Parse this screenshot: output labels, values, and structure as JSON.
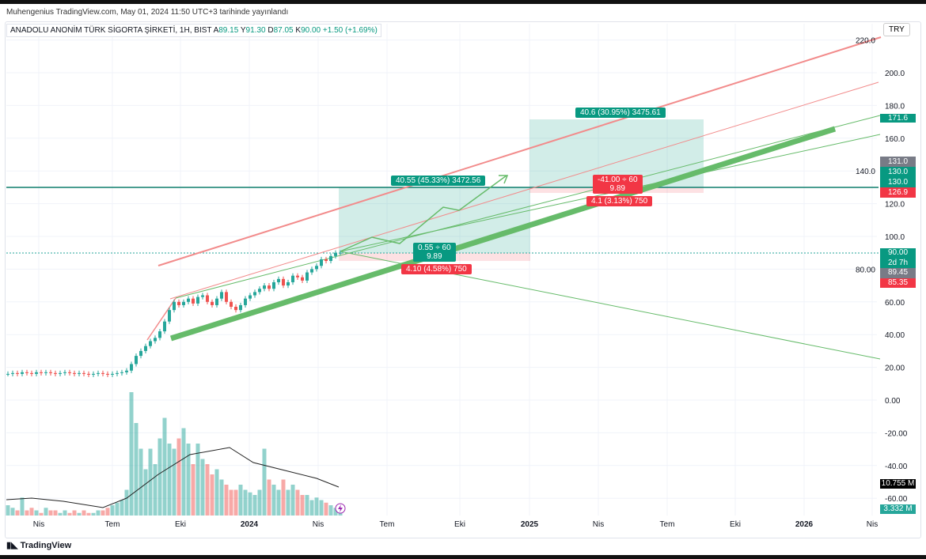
{
  "published": "Muhengenius TradingView.com, May 01, 2024 11:50 UTC+3 tarihinde yayınlandı",
  "legend": {
    "symbol": "ANADOLU ANONİM TÜRK SİGORTA ŞİRKETİ, 1H, BIST",
    "o_label": "A",
    "o": "89.15",
    "h_label": "Y",
    "h": "91.30",
    "l_label": "D",
    "l": "87.05",
    "c_label": "K",
    "c": "90.00",
    "change": "+1.50 (+1.69%)"
  },
  "currency": "TRY",
  "brand": "TradingView",
  "price_axis": [
    "220.0",
    "200.0",
    "180.0",
    "160.0",
    "140.0",
    "120.0",
    "100.0",
    "80.00",
    "60.00",
    "40.00",
    "20.00",
    "0.00",
    "-20.00",
    "-40.00",
    "-60.00"
  ],
  "time_axis": [
    "Nis",
    "Tem",
    "Eki",
    "2024",
    "Nis",
    "Tem",
    "Eki",
    "2025",
    "Nis",
    "Tem",
    "Eki",
    "2026",
    "Nis"
  ],
  "axis_tags": {
    "t171": "171.6",
    "t131": "131.0",
    "t130a": "130.0",
    "t130b": "130.0",
    "t126": "126.9",
    "t90": "90.00",
    "countdown": "2d 7h",
    "t89": "89.45",
    "t85": "85.35",
    "vol_ma": "10.755 M",
    "vol": "3.332 M"
  },
  "positions": {
    "long1_target": "40.55 (45.33%) 3472.56",
    "long1_mid1": "0.55 ÷ 60",
    "long1_mid2": "9.89",
    "long1_stop": "4.10 (4.58%) 750",
    "long2_target": "40.6 (30.95%) 3475.61",
    "long2_mid1": "-41.00 ÷ 60",
    "long2_mid2": "9.89",
    "long2_stop": "4.1 (3.13%) 750"
  },
  "colors": {
    "up": "#26a69a",
    "down": "#ef5350",
    "target": "#089981",
    "stop": "#f23645"
  },
  "chart_data": {
    "type": "candlestick",
    "closes": [
      16,
      16.5,
      16,
      17,
      16.5,
      16,
      17,
      16.5,
      17,
      16.5,
      16,
      16.5,
      17,
      16.5,
      16,
      16.5,
      16,
      15.5,
      16,
      16.5,
      16,
      15.5,
      16,
      16.5,
      17,
      18,
      22,
      27,
      30,
      33,
      36,
      38,
      42,
      48,
      55,
      60,
      58,
      60,
      62,
      59,
      63,
      64,
      60,
      58,
      62,
      66,
      60,
      57,
      55,
      58,
      62,
      64,
      66,
      68,
      70,
      68,
      72,
      74,
      70,
      72,
      76,
      75,
      73,
      78,
      80,
      82,
      86,
      85,
      88,
      90,
      90
    ],
    "volumes_m": [
      4,
      3,
      2,
      7,
      2,
      3,
      2,
      1,
      3,
      2,
      2,
      1,
      2,
      1,
      2,
      1,
      2,
      1,
      1,
      2,
      2,
      3,
      4,
      5,
      6,
      10,
      48,
      36,
      26,
      18,
      26,
      20,
      30,
      38,
      28,
      26,
      30,
      34,
      28,
      20,
      28,
      22,
      20,
      16,
      18,
      14,
      12,
      10,
      10,
      12,
      10,
      9,
      8,
      10,
      26,
      14,
      12,
      10,
      14,
      10,
      12,
      10,
      8,
      8,
      6,
      7,
      6,
      5,
      4,
      3,
      3.3
    ],
    "price_range": [
      -60,
      220
    ]
  }
}
